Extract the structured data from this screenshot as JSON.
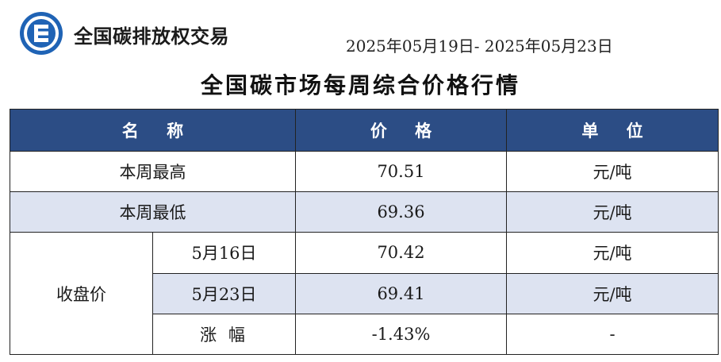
{
  "header": {
    "brand": "全国碳排放权交易",
    "date_range": "2025年05月19日- 2025年05月23日"
  },
  "title": "全国碳市场每周综合价格行情",
  "table": {
    "columns": [
      "名 称",
      "价 格",
      "单 位"
    ],
    "rows": {
      "weekly_high": {
        "name": "本周最高",
        "price": "70.51",
        "unit": "元/吨"
      },
      "weekly_low": {
        "name": "本周最低",
        "price": "69.36",
        "unit": "元/吨"
      },
      "close_group_label": "收盘价",
      "close_may16": {
        "name": "5月16日",
        "price": "70.42",
        "unit": "元/吨"
      },
      "close_may23": {
        "name": "5月23日",
        "price": "69.41",
        "unit": "元/吨"
      },
      "change": {
        "name": "涨 幅",
        "price": "-1.43%",
        "unit": "-"
      }
    }
  },
  "colors": {
    "header_bg": "#2c4d85",
    "row_shade": "#dde3f1",
    "logo_blue": "#1f63b5"
  }
}
